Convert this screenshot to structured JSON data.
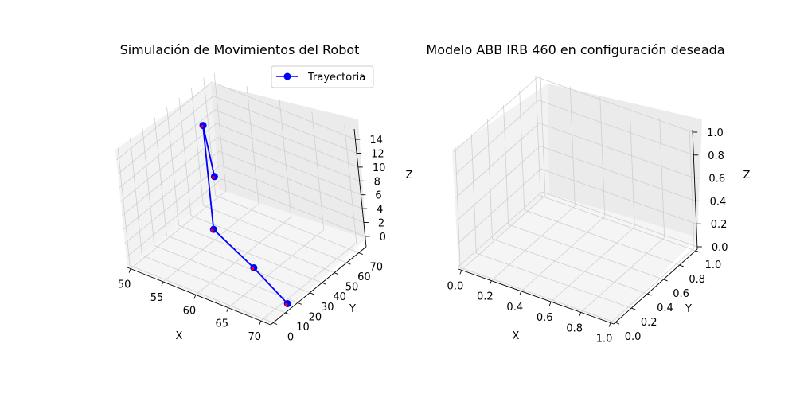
{
  "chart_data": [
    {
      "type": "line3d",
      "title": "Simulación de Movimientos del Robot",
      "xlabel": "X",
      "ylabel": "Y",
      "zlabel": "Z",
      "xticks": [
        "50",
        "55",
        "60",
        "65",
        "70"
      ],
      "yticks": [
        "0",
        "10",
        "20",
        "30",
        "40",
        "50",
        "60",
        "70"
      ],
      "zticks": [
        "0",
        "2",
        "4",
        "6",
        "8",
        "10",
        "12",
        "14"
      ],
      "grid": true,
      "legend_position": "top-right",
      "series": [
        {
          "name": "Trayectoria",
          "color": "#0000ff",
          "marker_color": "#0000ff",
          "joint_marker_color": "#ff0000",
          "points": [
            {
              "x": 72,
              "y": 10,
              "z": 0
            },
            {
              "x": 64,
              "y": 25,
              "z": 0
            },
            {
              "x": 55,
              "y": 40,
              "z": 0
            },
            {
              "x": 55,
              "y": 40,
              "z": 15
            },
            {
              "x": 56,
              "y": 40,
              "z": 8
            }
          ]
        }
      ]
    },
    {
      "type": "empty3d",
      "title": "Modelo ABB IRB 460 en configuración deseada",
      "xlabel": "X",
      "ylabel": "Y",
      "zlabel": "Z",
      "xticks": [
        "0.0",
        "0.2",
        "0.4",
        "0.6",
        "0.8",
        "1.0"
      ],
      "yticks": [
        "0.0",
        "0.2",
        "0.4",
        "0.6",
        "0.8",
        "1.0"
      ],
      "zticks": [
        "0.0",
        "0.2",
        "0.4",
        "0.6",
        "0.8",
        "1.0"
      ],
      "grid": true
    }
  ]
}
